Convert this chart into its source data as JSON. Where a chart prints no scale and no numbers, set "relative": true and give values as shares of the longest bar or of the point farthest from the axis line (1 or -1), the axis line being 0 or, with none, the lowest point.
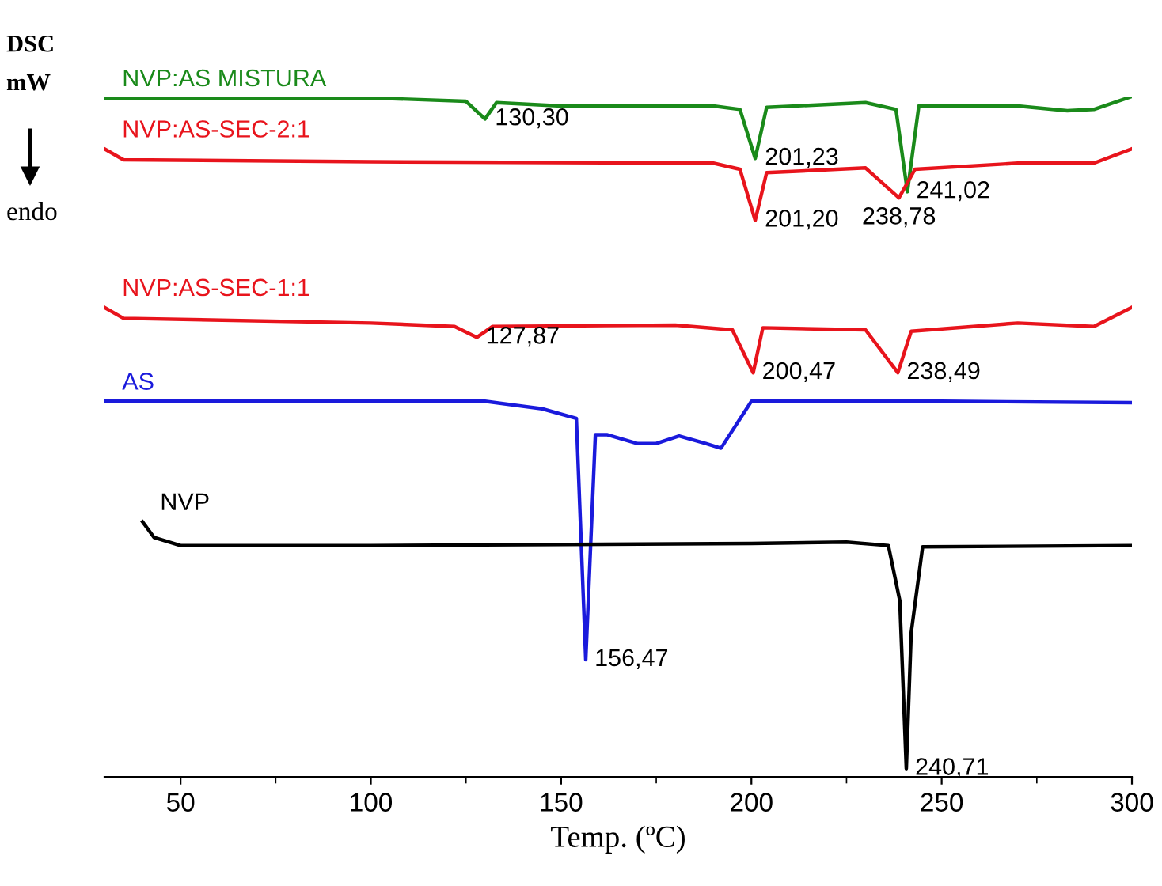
{
  "chart_data": {
    "type": "line",
    "xlabel": "Temp. (ºC)",
    "ylabel": "DSC\nmW",
    "relative": true,
    "xlim": [
      30,
      300
    ],
    "xticks": [
      50,
      100,
      150,
      200,
      250,
      300
    ],
    "grid": false,
    "legend": false,
    "series": [
      {
        "name": "NVP:AS MISTURA",
        "color": "#1a8a1a",
        "x": [
          30,
          100,
          125,
          130,
          133,
          150,
          190,
          197,
          201,
          204,
          230,
          238,
          241,
          244,
          270,
          283,
          290,
          300
        ],
        "values": [
          0.998,
          0.998,
          0.993,
          0.967,
          0.991,
          0.986,
          0.986,
          0.981,
          0.909,
          0.984,
          0.991,
          0.981,
          0.86,
          0.986,
          0.986,
          0.979,
          0.981,
          1.0
        ]
      },
      {
        "name": "NVP:AS-SEC-2:1",
        "color": "#e8141c",
        "x": [
          30,
          35,
          100,
          190,
          197,
          201,
          204,
          230,
          238.78,
          243,
          270,
          290,
          300
        ],
        "values": [
          0.923,
          0.907,
          0.904,
          0.902,
          0.893,
          0.818,
          0.888,
          0.895,
          0.851,
          0.893,
          0.902,
          0.902,
          0.923
        ]
      },
      {
        "name": "NVP:AS-SEC-1:1",
        "color": "#e8141c",
        "x": [
          30,
          35,
          100,
          122,
          127.87,
          132,
          180,
          195,
          200.47,
          203,
          230,
          238.49,
          242,
          270,
          290,
          300
        ],
        "values": [
          0.69,
          0.674,
          0.667,
          0.662,
          0.646,
          0.662,
          0.664,
          0.657,
          0.594,
          0.66,
          0.657,
          0.594,
          0.655,
          0.667,
          0.662,
          0.69
        ]
      },
      {
        "name": "AS",
        "color": "#1a1adc",
        "x": [
          30,
          130,
          145,
          154,
          156.47,
          159,
          162,
          170,
          175,
          181,
          188,
          192,
          200,
          250,
          300
        ],
        "values": [
          0.552,
          0.552,
          0.541,
          0.527,
          0.172,
          0.503,
          0.503,
          0.49,
          0.49,
          0.501,
          0.49,
          0.483,
          0.552,
          0.552,
          0.55
        ]
      },
      {
        "name": "NVP",
        "color": "#000000",
        "x": [
          40,
          43,
          50,
          100,
          200,
          225,
          236,
          239,
          240.71,
          242,
          245,
          300
        ],
        "values": [
          0.375,
          0.352,
          0.34,
          0.34,
          0.343,
          0.345,
          0.34,
          0.259,
          0.012,
          0.212,
          0.338,
          0.34
        ]
      }
    ],
    "annotations": [
      {
        "text": "130,30",
        "x": 130.3,
        "y": 0.967
      },
      {
        "text": "201,23",
        "x": 201.23,
        "y": 0.909
      },
      {
        "text": "241,02",
        "x": 241.02,
        "y": 0.86
      },
      {
        "text": "201,20",
        "x": 201.2,
        "y": 0.818
      },
      {
        "text": "238,78",
        "x": 238.78,
        "y": 0.851
      },
      {
        "text": "127,87",
        "x": 127.87,
        "y": 0.646
      },
      {
        "text": "200,47",
        "x": 200.47,
        "y": 0.594
      },
      {
        "text": "238,49",
        "x": 238.49,
        "y": 0.594
      },
      {
        "text": "156,47",
        "x": 156.47,
        "y": 0.172
      },
      {
        "text": "240,71",
        "x": 240.71,
        "y": 0.012
      },
      "endo"
    ]
  }
}
